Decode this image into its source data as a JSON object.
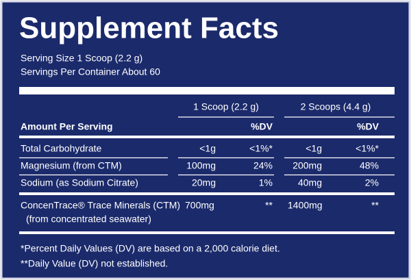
{
  "title": "Supplement Facts",
  "serving_size": "Serving Size 1 Scoop (2.2 g)",
  "servings_per_container": "Servings Per Container About 60",
  "table": {
    "columns": [
      "1 Scoop (2.2 g)",
      "2 Scoops (4.4 g)"
    ],
    "amount_header": "Amount Per Serving",
    "dv_headers": [
      "%DV",
      "%DV"
    ],
    "rows": [
      [
        "Total Carbohydrate",
        "<1g",
        "<1%*",
        "<1g",
        "<1%*"
      ],
      [
        "Magnesium (from CTM)",
        "100mg",
        "24%",
        "200mg",
        "48%"
      ],
      [
        "Sodium (as Sodium Citrate)",
        "20mg",
        "1%",
        "40mg",
        "2%"
      ]
    ],
    "ctm": {
      "label": "ConcenTrace® Trace Minerals (CTM)",
      "sublabel": "(from concentrated seawater)",
      "values": [
        "700mg",
        "**",
        "1400mg",
        "**"
      ]
    }
  },
  "footnotes": [
    "*Percent Daily Values (DV) are based on a 2,000 calorie diet.",
    "**Daily Value (DV) not established."
  ]
}
